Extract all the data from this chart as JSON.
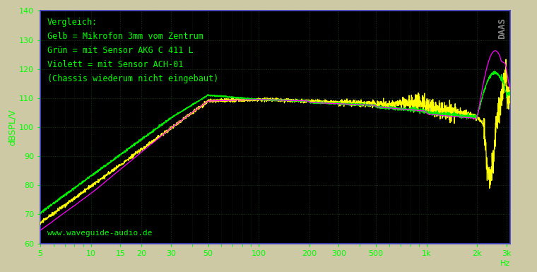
{
  "ylabel": "dBSPL/V",
  "xlabel": "Hz",
  "annotation_lines": [
    "Vergleich:",
    "Gelb = Mikrofon 3mm vom Zentrum",
    "Grün = mit Sensor AKG C 411 L",
    "Violett = mit Sensor ACH-01",
    "(Chassis wiederum nicht eingebaut)"
  ],
  "watermark": "www.waveguide-audio.de",
  "logo_text": "DAAS",
  "plot_bg_color": "#000000",
  "outer_bg_color": "#cdc9a5",
  "grid_color": "#1a3a1a",
  "spine_color": "#4444cc",
  "tick_color": "#00ff00",
  "text_color": "#00ff00",
  "ylim": [
    60,
    140
  ],
  "yticks": [
    60,
    70,
    80,
    90,
    100,
    110,
    120,
    130,
    140
  ],
  "xticks_major": [
    5,
    10,
    15,
    20,
    30,
    50,
    100,
    200,
    300,
    500,
    1000,
    2000,
    3000
  ],
  "xtick_labels": [
    "5",
    "10",
    "15",
    "20",
    "30",
    "50",
    "100",
    "200",
    "300",
    "500",
    "1k",
    "2k",
    "3k"
  ],
  "xmin": 5,
  "xmax": 3150,
  "line_yellow_color": "#ffff00",
  "line_green_color": "#00ee00",
  "line_magenta_color": "#ff00ff",
  "line_width": 0.9
}
